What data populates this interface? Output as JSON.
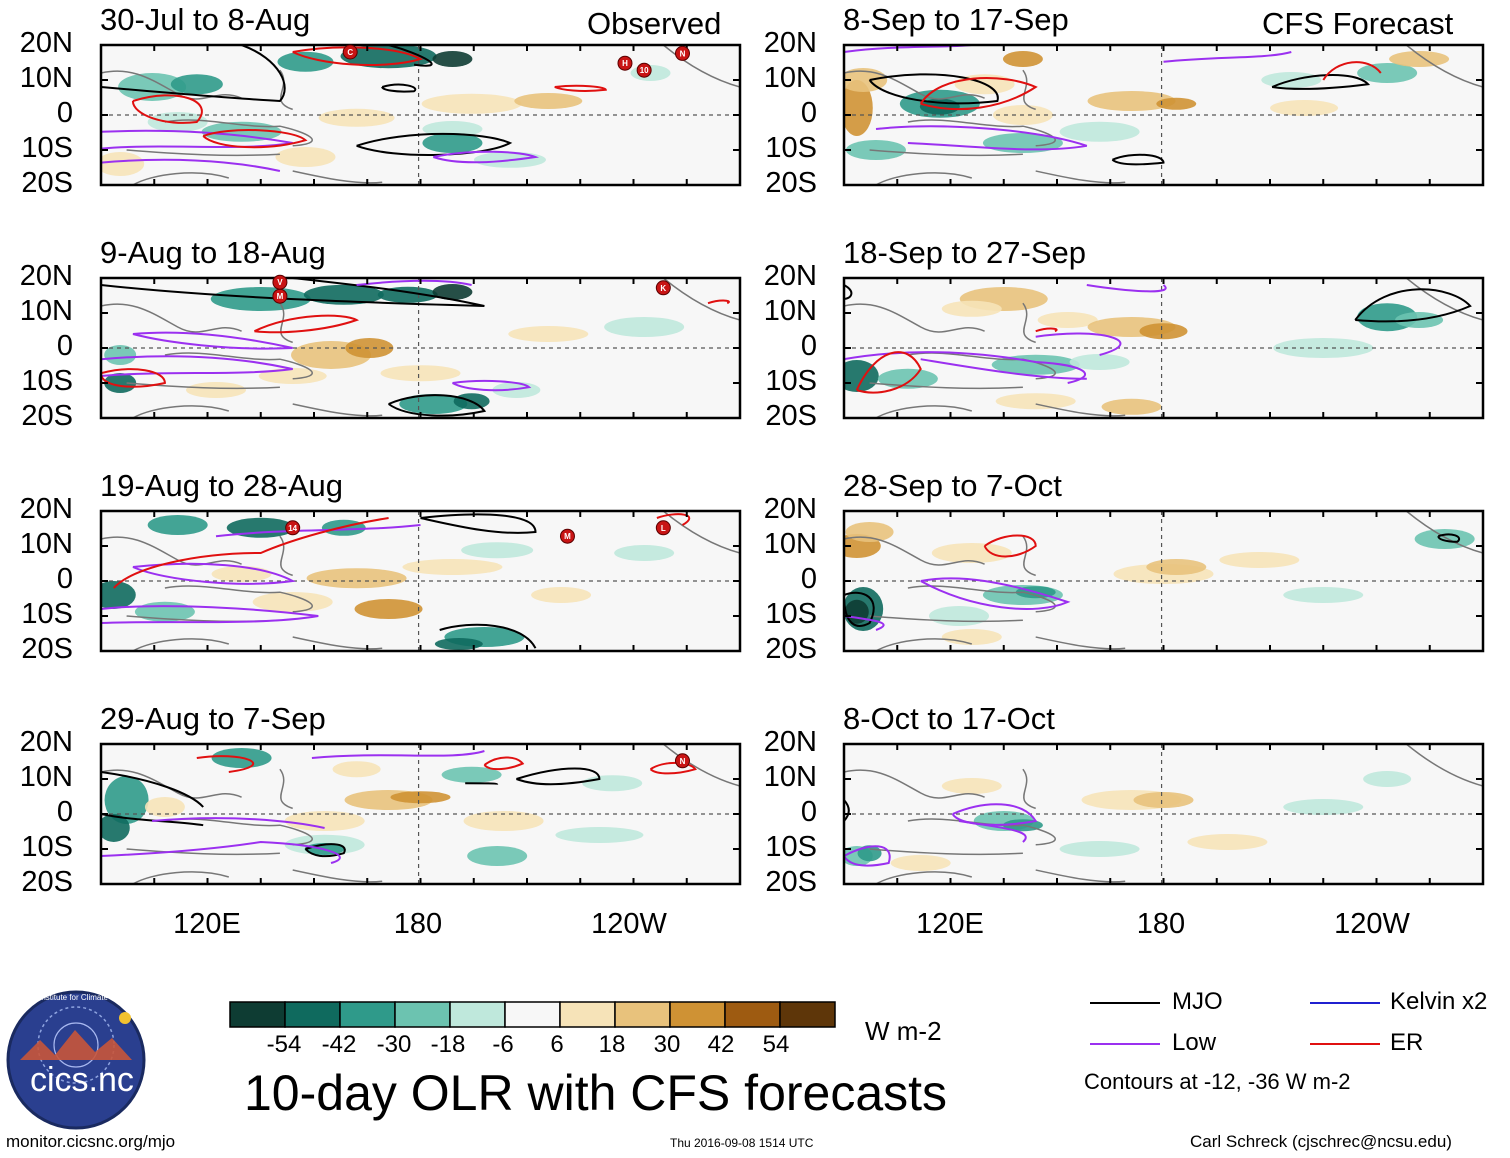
{
  "header": {
    "left_label": "Observed",
    "right_label": "CFS Forecast"
  },
  "panels": [
    {
      "title": "30-Jul to 8-Aug",
      "column": "observed"
    },
    {
      "title": "9-Aug to 18-Aug",
      "column": "observed"
    },
    {
      "title": "19-Aug to 28-Aug",
      "column": "observed"
    },
    {
      "title": "29-Aug to 7-Sep",
      "column": "observed"
    },
    {
      "title": "8-Sep to 17-Sep",
      "column": "forecast"
    },
    {
      "title": "18-Sep to 27-Sep",
      "column": "forecast"
    },
    {
      "title": "28-Sep to 7-Oct",
      "column": "forecast"
    },
    {
      "title": "8-Oct to 17-Oct",
      "column": "forecast"
    }
  ],
  "y_axis": {
    "labels": [
      "20N",
      "10N",
      "0",
      "10S",
      "20S"
    ]
  },
  "x_axis": {
    "labels": [
      "120E",
      "180",
      "120W"
    ]
  },
  "colorbar": {
    "labels": [
      "-54",
      "-42",
      "-30",
      "-18",
      "-6",
      "6",
      "18",
      "30",
      "42",
      "54"
    ],
    "colors": [
      "#0e3c33",
      "#0f6a5e",
      "#2f9a8a",
      "#6cc3b0",
      "#bfe8dc",
      "#f7f7f7",
      "#f6e3b8",
      "#e8c27c",
      "#cf9234",
      "#9e5b11",
      "#5e3609"
    ],
    "units": "W m-2"
  },
  "legend": {
    "items": [
      {
        "label": "MJO",
        "color": "#000000"
      },
      {
        "label": "Kelvin x2",
        "color": "#2020d0"
      },
      {
        "label": "Low",
        "color": "#9b30f0"
      },
      {
        "label": "ER",
        "color": "#e01010"
      }
    ],
    "note": "Contours at -12, -36 W m-2"
  },
  "title": "10-day OLR with CFS forecasts",
  "logo_text": "cics.nc",
  "logo_ring_text": "Cooperative Institute for Climate and Satellites",
  "footer": {
    "url": "monitor.cicsnc.org/mjo",
    "timestamp": "Thu 2016-09-08 1514 UTC",
    "credit": "Carl Schreck (cjschrec@ncsu.edu)"
  },
  "storm_markers": {
    "panel_1": [
      "H",
      "10",
      "C",
      "N"
    ],
    "panel_2": [
      "K",
      "M",
      "V"
    ],
    "panel_3": [
      "14",
      "M",
      "L"
    ],
    "panel_4": [
      "N"
    ]
  }
}
